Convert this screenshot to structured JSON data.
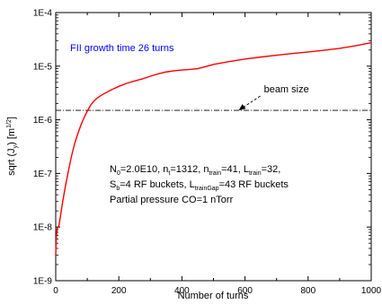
{
  "chart_data": {
    "type": "line",
    "x_label": "Number of turns",
    "y_label_parts": [
      "sqrt (J",
      "y",
      ") [m",
      "1/2",
      "]"
    ],
    "x_range": [
      0,
      1000
    ],
    "y_range_log10": [
      -9,
      -4
    ],
    "x_ticks": [
      {
        "value": 0,
        "label": "0"
      },
      {
        "value": 200,
        "label": "200"
      },
      {
        "value": 400,
        "label": "400"
      },
      {
        "value": 600,
        "label": "600"
      },
      {
        "value": 800,
        "label": "800"
      },
      {
        "value": 1000,
        "label": "1000"
      }
    ],
    "y_ticks": [
      {
        "value": 1e-09,
        "label": "1E-9"
      },
      {
        "value": 1e-08,
        "label": "1E-8"
      },
      {
        "value": 1e-07,
        "label": "1E-7"
      },
      {
        "value": 1e-06,
        "label": "1E-6"
      },
      {
        "value": 1e-05,
        "label": "1E-5"
      },
      {
        "value": 0.0001,
        "label": "1E-4"
      }
    ],
    "scale": "log-y",
    "grid": false,
    "series": [
      {
        "color": "#ff0000",
        "x": [
          0,
          2,
          5,
          10,
          15,
          20,
          30,
          40,
          50,
          60,
          70,
          80,
          90,
          100,
          110,
          120,
          130,
          140,
          150,
          175,
          200,
          225,
          250,
          275,
          300,
          325,
          350,
          375,
          400,
          425,
          450,
          475,
          500,
          550,
          600,
          650,
          700,
          750,
          800,
          850,
          900,
          950,
          1000
        ],
        "y": [
          3e-09,
          6.5e-09,
          9.5e-09,
          1.05e-08,
          1.6e-08,
          2.5e-08,
          5.5e-08,
          1.1e-07,
          2.1e-07,
          3.6e-07,
          5.5e-07,
          8e-07,
          1.1e-06,
          1.45e-06,
          1.85e-06,
          2.2e-06,
          2.5e-06,
          2.75e-06,
          3e-06,
          3.6e-06,
          4.2e-06,
          4.8e-06,
          5.3e-06,
          5.8e-06,
          6.5e-06,
          7.2e-06,
          7.8e-06,
          8.2e-06,
          8.5e-06,
          8.7e-06,
          9e-06,
          9.8e-06,
          1.08e-05,
          1.22e-05,
          1.36e-05,
          1.48e-05,
          1.6e-05,
          1.72e-05,
          1.84e-05,
          1.98e-05,
          2.15e-05,
          2.4e-05,
          2.75e-05
        ]
      }
    ],
    "reference_line": {
      "y": 1.5e-06,
      "label": "beam size",
      "style": "dash-dot"
    },
    "annotations": {
      "growth_time": "FII growth time 26 turns",
      "growth_time_color": "#0000ff",
      "line1": [
        {
          "t": "N"
        },
        {
          "t": "0",
          "sub": true
        },
        {
          "t": "=2.0E10, n"
        },
        {
          "t": "t",
          "sub": true
        },
        {
          "t": "=1312, n"
        },
        {
          "t": "train",
          "sub": true
        },
        {
          "t": "=41, L"
        },
        {
          "t": "train",
          "sub": true
        },
        {
          "t": "=32,"
        }
      ],
      "line2": [
        {
          "t": "S"
        },
        {
          "t": "b",
          "sub": true
        },
        {
          "t": "=4 RF buckets, L"
        },
        {
          "t": "trainGap",
          "sub": true
        },
        {
          "t": "=43 RF buckets"
        }
      ],
      "line3": [
        {
          "t": "Partial pressure CO=1 nTorr"
        }
      ]
    }
  }
}
